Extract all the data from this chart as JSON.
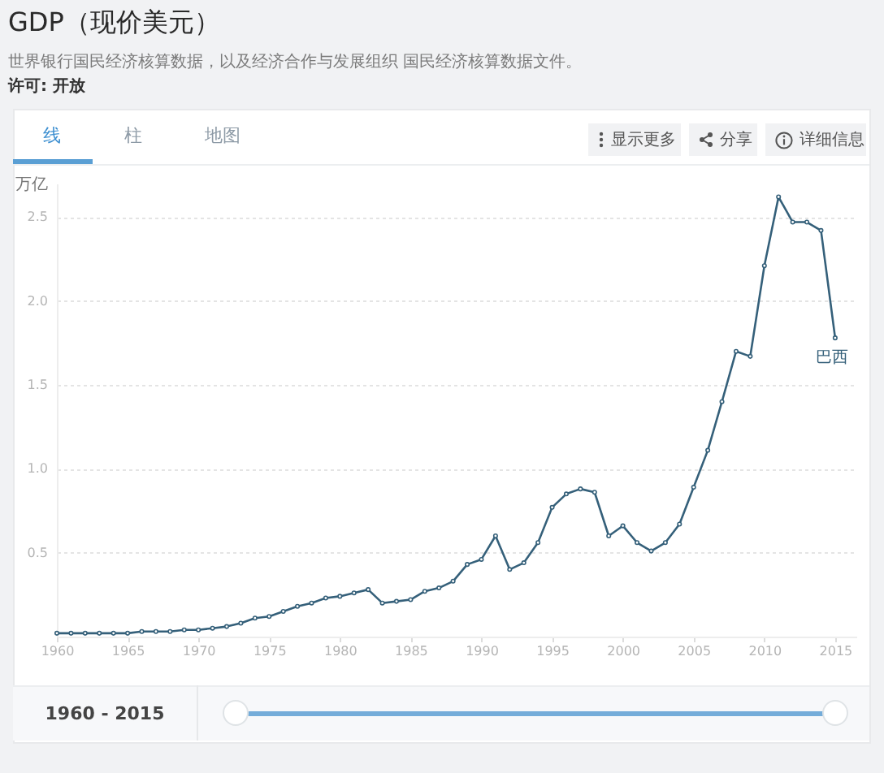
{
  "chart_data": {
    "type": "line",
    "title": "GDP（现价美元）",
    "subtitle": "世界银行国民经济核算数据，以及经济合作与发展组织 国民经济核算数据文件。",
    "ylabel": "万亿",
    "annotations": [
      "许可: 开放",
      "线",
      "柱",
      "地图",
      "显示更多",
      "分享",
      "详细信息",
      "1960 - 2015"
    ],
    "x": [
      1960,
      1961,
      1962,
      1963,
      1964,
      1965,
      1966,
      1967,
      1968,
      1969,
      1970,
      1971,
      1972,
      1973,
      1974,
      1975,
      1976,
      1977,
      1978,
      1979,
      1980,
      1981,
      1982,
      1983,
      1984,
      1985,
      1986,
      1987,
      1988,
      1989,
      1990,
      1991,
      1992,
      1993,
      1994,
      1995,
      1996,
      1997,
      1998,
      1999,
      2000,
      2001,
      2002,
      2003,
      2004,
      2005,
      2006,
      2007,
      2008,
      2009,
      2010,
      2011,
      2012,
      2013,
      2014,
      2015
    ],
    "series": [
      {
        "name": "巴西",
        "color": "#35607a",
        "values": [
          0.02,
          0.02,
          0.02,
          0.02,
          0.02,
          0.02,
          0.03,
          0.03,
          0.03,
          0.04,
          0.04,
          0.05,
          0.06,
          0.08,
          0.11,
          0.12,
          0.15,
          0.18,
          0.2,
          0.23,
          0.24,
          0.26,
          0.28,
          0.2,
          0.21,
          0.22,
          0.27,
          0.29,
          0.33,
          0.43,
          0.46,
          0.6,
          0.4,
          0.44,
          0.56,
          0.77,
          0.85,
          0.88,
          0.86,
          0.6,
          0.66,
          0.56,
          0.51,
          0.56,
          0.67,
          0.89,
          1.11,
          1.4,
          1.7,
          1.67,
          2.21,
          2.62,
          2.47,
          2.47,
          2.42,
          1.78
        ]
      }
    ],
    "xlim": [
      1960,
      2016.5
    ],
    "xticks": [
      1960,
      1965,
      1970,
      1975,
      1980,
      1985,
      1990,
      1995,
      2000,
      2005,
      2010,
      2015
    ],
    "ylim": [
      0,
      2.7
    ],
    "yticks": [
      0.5,
      {
        "value": 1,
        "label": "1.0"
      },
      1.5,
      {
        "value": 2,
        "label": "2.0"
      },
      2.5
    ],
    "grid": "y",
    "marker": "circle",
    "line_style": "solid"
  }
}
